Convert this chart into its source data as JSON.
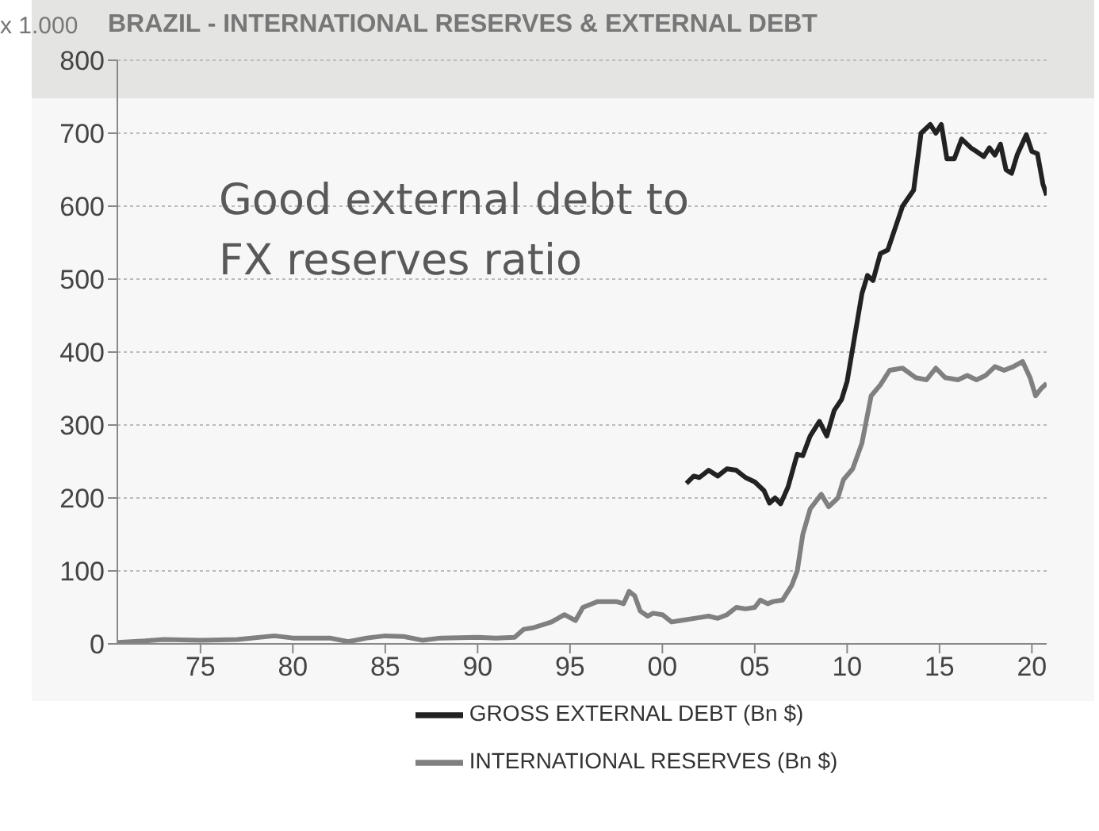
{
  "chart_data": {
    "type": "line",
    "title": "BRAZIL - INTERNATIONAL RESERVES & EXTERNAL DEBT",
    "ylabel": "x 1.000",
    "annotations": [
      "Good external debt to FX reserves ratio"
    ],
    "xlim": [
      1970.5,
      2020.8
    ],
    "xticks": [
      {
        "value": 1975,
        "label": "75"
      },
      {
        "value": 1980,
        "label": "80"
      },
      {
        "value": 1985,
        "label": "85"
      },
      {
        "value": 1990,
        "label": "90"
      },
      {
        "value": 1995,
        "label": "95"
      },
      {
        "value": 2000,
        "label": "00"
      },
      {
        "value": 2005,
        "label": "05"
      },
      {
        "value": 2010,
        "label": "10"
      },
      {
        "value": 2015,
        "label": "15"
      },
      {
        "value": 2020,
        "label": "20"
      }
    ],
    "ylim": [
      0,
      800
    ],
    "yticks": [
      0,
      100,
      200,
      300,
      400,
      500,
      600,
      700,
      800
    ],
    "grid": "y",
    "legend": "bottom",
    "marker": "none",
    "line_style": "solid",
    "series": [
      {
        "name": "INTERNATIONAL RESERVES (Bn $)",
        "color": "#808080",
        "x": [
          1970.5,
          1972,
          1973,
          1975,
          1977,
          1979,
          1980,
          1982,
          1983,
          1984,
          1985,
          1986,
          1987,
          1988,
          1990,
          1991,
          1992,
          1992.5,
          1993,
          1994,
          1994.7,
          1995.3,
          1995.7,
          1996.5,
          1997.5,
          1997.9,
          1998.2,
          1998.5,
          1998.8,
          1999.2,
          1999.5,
          2000,
          2000.5,
          2001,
          2002,
          2002.5,
          2003,
          2003.5,
          2004,
          2004.5,
          2005,
          2005.3,
          2005.7,
          2006,
          2006.5,
          2007,
          2007.3,
          2007.6,
          2008,
          2008.6,
          2009,
          2009.5,
          2009.8,
          2010.3,
          2010.8,
          2011.3,
          2011.8,
          2012.3,
          2013,
          2013.7,
          2014.3,
          2014.8,
          2015.3,
          2016,
          2016.5,
          2017,
          2017.5,
          2018,
          2018.5,
          2019,
          2019.5,
          2019.9,
          2020.2,
          2020.5,
          2020.8
        ],
        "values": [
          2,
          4,
          6,
          5,
          6,
          11,
          8,
          8,
          3,
          8,
          11,
          10,
          5,
          8,
          9,
          8,
          9,
          20,
          22,
          30,
          40,
          32,
          50,
          58,
          58,
          55,
          72,
          66,
          45,
          38,
          42,
          40,
          30,
          32,
          36,
          38,
          35,
          40,
          50,
          48,
          50,
          60,
          55,
          58,
          60,
          80,
          100,
          150,
          185,
          205,
          188,
          200,
          225,
          240,
          275,
          340,
          355,
          375,
          378,
          365,
          362,
          378,
          365,
          362,
          368,
          362,
          368,
          380,
          375,
          380,
          387,
          365,
          340,
          350,
          357
        ]
      },
      {
        "name": "GROSS EXTERNAL DEBT (Bn $)",
        "color": "#222222",
        "x": [
          2001.3,
          2001.7,
          2002,
          2002.5,
          2003,
          2003.5,
          2004,
          2004.5,
          2005,
          2005.5,
          2005.8,
          2006.1,
          2006.4,
          2006.8,
          2007.3,
          2007.6,
          2008,
          2008.5,
          2008.9,
          2009.3,
          2009.7,
          2010,
          2010.4,
          2010.8,
          2011.1,
          2011.4,
          2011.8,
          2012.2,
          2012.6,
          2013,
          2013.6,
          2014,
          2014.5,
          2014.8,
          2015.1,
          2015.4,
          2015.8,
          2016.2,
          2016.7,
          2017,
          2017.4,
          2017.7,
          2018,
          2018.3,
          2018.6,
          2018.9,
          2019.2,
          2019.7,
          2020,
          2020.3,
          2020.6,
          2020.8
        ],
        "values": [
          220,
          230,
          228,
          238,
          230,
          240,
          238,
          228,
          222,
          210,
          193,
          200,
          192,
          215,
          260,
          258,
          285,
          305,
          285,
          320,
          335,
          360,
          420,
          480,
          505,
          498,
          535,
          540,
          570,
          600,
          622,
          700,
          712,
          700,
          712,
          665,
          665,
          692,
          680,
          675,
          668,
          680,
          670,
          685,
          650,
          645,
          670,
          698,
          675,
          672,
          630,
          615
        ]
      }
    ]
  }
}
